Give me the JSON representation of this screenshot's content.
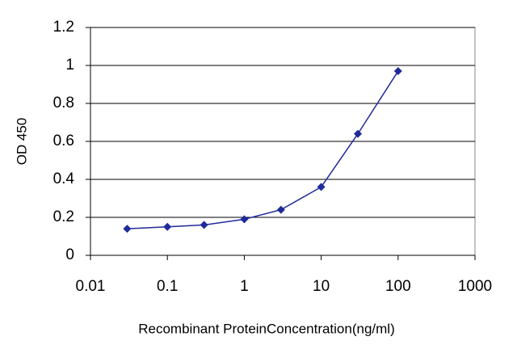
{
  "chart_data": {
    "type": "line",
    "x_label": "Recombinant ProteinConcentration(ng/ml)",
    "y_label": "OD 450",
    "x": [
      0.03,
      0.1,
      0.3,
      1,
      3,
      10,
      30,
      100
    ],
    "series": [
      {
        "name": "OD 450",
        "color": "#1f2a9a",
        "values": [
          0.14,
          0.15,
          0.16,
          0.19,
          0.24,
          0.36,
          0.64,
          0.97
        ]
      }
    ],
    "xscale": "log",
    "xlim": [
      0.01,
      1000
    ],
    "xticks": [
      0.01,
      0.1,
      1,
      10,
      100,
      1000
    ],
    "ylim": [
      0,
      1.2
    ],
    "yticks": [
      0,
      0.2,
      0.4,
      0.6,
      0.8,
      1,
      1.2
    ],
    "grid": true
  }
}
